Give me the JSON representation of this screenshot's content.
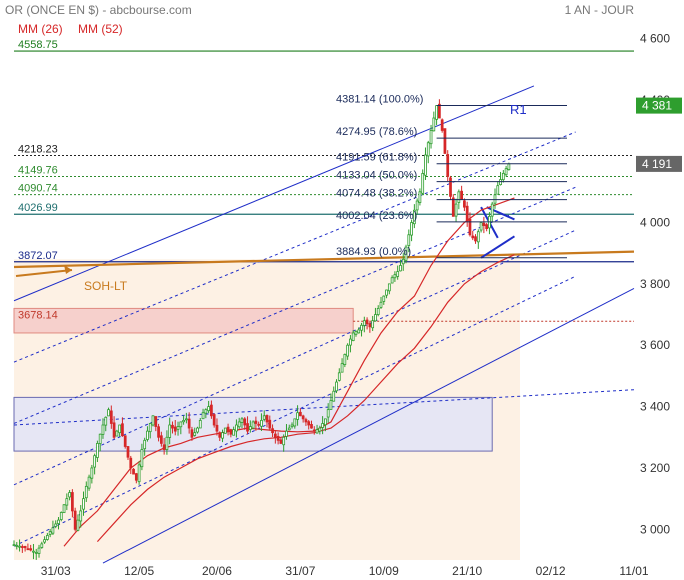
{
  "header": {
    "title": "OR (ONCE EN $) - abcbourse.com",
    "period": "1 AN - JOUR",
    "legend": [
      {
        "label": "MM (26)",
        "color": "#d62728"
      },
      {
        "label": "MM (52)",
        "color": "#d62728"
      }
    ]
  },
  "chart_data": {
    "type": "candlestick",
    "ylim": [
      2900,
      4660
    ],
    "yticks": [
      3000,
      3200,
      3400,
      3600,
      3800,
      4000,
      4200,
      4400,
      4600
    ],
    "ytick_labels": [
      "3 000",
      "3 200",
      "3 400",
      "3 600",
      "3 800",
      "4 000",
      "4 200",
      "4 400",
      "4 600"
    ],
    "xticks": [
      {
        "label": "31/03",
        "day": 15
      },
      {
        "label": "12/05",
        "day": 45
      },
      {
        "label": "20/06",
        "day": 73
      },
      {
        "label": "31/07",
        "day": 103
      },
      {
        "label": "10/09",
        "day": 133
      },
      {
        "label": "21/10",
        "day": 163
      },
      {
        "label": "02/12",
        "day": 193
      },
      {
        "label": "11/01",
        "day": 223
      }
    ],
    "days_total": 223,
    "price_badges": [
      {
        "text": "4 381",
        "value": 4381,
        "color": "#2e9e2e"
      },
      {
        "text": "4 191",
        "value": 4191,
        "color": "#666666"
      }
    ],
    "levels": [
      {
        "label": "4558.75",
        "value": 4558.75,
        "color": "#1e7d1e",
        "style": "solid"
      },
      {
        "label": "4218.23",
        "value": 4218.23,
        "color": "#222222",
        "style": "dotted"
      },
      {
        "label": "4149.76",
        "value": 4149.76,
        "color": "#2e8b2e",
        "style": "dotted"
      },
      {
        "label": "4090.74",
        "value": 4090.74,
        "color": "#2e8b2e",
        "style": "dotted"
      },
      {
        "label": "4026.99",
        "value": 4026.99,
        "color": "#1f6f6f",
        "style": "solid"
      },
      {
        "label": "3872.07",
        "value": 3872.07,
        "color": "#1a2a8a",
        "style": "solid"
      },
      {
        "label": "3678.14",
        "value": 3678.14,
        "color": "#c0392b",
        "style": "dotted"
      }
    ],
    "fibonacci": [
      {
        "label": "4381.14 (100.0%)",
        "value": 4381.14
      },
      {
        "label": "4274.95 (78.6%)",
        "value": 4274.95
      },
      {
        "label": "4191.59 (61.8%)",
        "value": 4191.59
      },
      {
        "label": "4133.04 (50.0%)",
        "value": 4133.04
      },
      {
        "label": "4074.48 (38.2%)",
        "value": 4074.48
      },
      {
        "label": "4002.04 (23.6%)",
        "value": 4002.04
      },
      {
        "label": "3884.93 (0.0%)",
        "value": 3884.93
      }
    ],
    "annotations": {
      "r1": "R1",
      "soh_lt": "SOH-LT"
    },
    "zones": [
      {
        "name": "resistance-zone",
        "day_start": 0,
        "day_end": 122,
        "low": 3640,
        "high": 3720,
        "color": "#f6d0cc",
        "border": "#e08a80"
      },
      {
        "name": "consolidation-zone",
        "day_start": 0,
        "day_end": 172,
        "low": 3255,
        "high": 3430,
        "color": "#e6e6f4",
        "border": "#6a6ab0"
      },
      {
        "name": "channel-background",
        "day_start": 0,
        "day_end": 182,
        "low": 2900,
        "high": 3880,
        "color": "#fdf1e4",
        "border": ""
      }
    ],
    "trend_lines": [
      {
        "name": "channel-top",
        "p1": [
          0,
          3745
        ],
        "p2": [
          187,
          4445
        ],
        "color": "#1f2ec8",
        "dash": ""
      },
      {
        "name": "channel-bottom",
        "p1": [
          32,
          2890
        ],
        "p2": [
          223,
          3785
        ],
        "color": "#1f2ec8",
        "dash": ""
      },
      {
        "name": "channel-mid-1",
        "p1": [
          0,
          3545
        ],
        "p2": [
          202,
          4295
        ],
        "color": "#1f2ec8",
        "dash": "3,3"
      },
      {
        "name": "channel-mid-2",
        "p1": [
          0,
          3345
        ],
        "p2": [
          202,
          4115
        ],
        "color": "#1f2ec8",
        "dash": "3,3"
      },
      {
        "name": "channel-mid-3",
        "p1": [
          0,
          3145
        ],
        "p2": [
          202,
          3975
        ],
        "color": "#1f2ec8",
        "dash": "3,3"
      },
      {
        "name": "channel-mid-4",
        "p1": [
          0,
          2945
        ],
        "p2": [
          202,
          3825
        ],
        "color": "#1f2ec8",
        "dash": "3,3"
      },
      {
        "name": "support-dotted",
        "p1": [
          0,
          3340
        ],
        "p2": [
          223,
          3455
        ],
        "color": "#1f2ec8",
        "dash": "3,3"
      },
      {
        "name": "soh-lt-line",
        "p1": [
          0,
          3855
        ],
        "p2": [
          223,
          3905
        ],
        "color": "#c87a1e",
        "dash": ""
      },
      {
        "name": "triangle-upper",
        "p1": [
          170,
          4050
        ],
        "p2": [
          180,
          4010
        ],
        "color": "#1f2ec8",
        "dash": ""
      },
      {
        "name": "triangle-lower",
        "p1": [
          168,
          3885
        ],
        "p2": [
          180,
          3955
        ],
        "color": "#1f2ec8",
        "dash": ""
      },
      {
        "name": "triangle-left",
        "p1": [
          168,
          4050
        ],
        "p2": [
          174,
          3950
        ],
        "color": "#1f2ec8",
        "dash": ""
      }
    ],
    "ma26": [
      [
        18,
        2945
      ],
      [
        24,
        3010
      ],
      [
        30,
        3060
      ],
      [
        36,
        3130
      ],
      [
        42,
        3200
      ],
      [
        48,
        3240
      ],
      [
        54,
        3265
      ],
      [
        60,
        3280
      ],
      [
        66,
        3300
      ],
      [
        72,
        3310
      ],
      [
        78,
        3320
      ],
      [
        84,
        3330
      ],
      [
        90,
        3325
      ],
      [
        96,
        3320
      ],
      [
        102,
        3318
      ],
      [
        108,
        3320
      ],
      [
        114,
        3350
      ],
      [
        120,
        3450
      ],
      [
        126,
        3550
      ],
      [
        132,
        3640
      ],
      [
        138,
        3710
      ],
      [
        144,
        3760
      ],
      [
        150,
        3860
      ],
      [
        156,
        3940
      ],
      [
        162,
        4000
      ],
      [
        168,
        4040
      ],
      [
        174,
        4060
      ],
      [
        180,
        4080
      ]
    ],
    "ma52": [
      [
        30,
        2960
      ],
      [
        36,
        3020
      ],
      [
        42,
        3080
      ],
      [
        48,
        3130
      ],
      [
        54,
        3170
      ],
      [
        60,
        3200
      ],
      [
        66,
        3230
      ],
      [
        72,
        3250
      ],
      [
        78,
        3270
      ],
      [
        84,
        3285
      ],
      [
        90,
        3295
      ],
      [
        96,
        3300
      ],
      [
        102,
        3310
      ],
      [
        108,
        3315
      ],
      [
        114,
        3330
      ],
      [
        120,
        3370
      ],
      [
        126,
        3420
      ],
      [
        132,
        3480
      ],
      [
        138,
        3540
      ],
      [
        144,
        3590
      ],
      [
        150,
        3660
      ],
      [
        156,
        3740
      ],
      [
        162,
        3800
      ],
      [
        168,
        3840
      ],
      [
        174,
        3870
      ],
      [
        180,
        3895
      ]
    ],
    "price_path": [
      [
        0,
        2950
      ],
      [
        4,
        2940
      ],
      [
        8,
        2925
      ],
      [
        12,
        2980
      ],
      [
        16,
        3030
      ],
      [
        18,
        3080
      ],
      [
        20,
        3120
      ],
      [
        22,
        3000
      ],
      [
        24,
        3060
      ],
      [
        26,
        3140
      ],
      [
        28,
        3200
      ],
      [
        30,
        3280
      ],
      [
        32,
        3340
      ],
      [
        34,
        3390
      ],
      [
        36,
        3300
      ],
      [
        38,
        3340
      ],
      [
        40,
        3270
      ],
      [
        42,
        3200
      ],
      [
        44,
        3160
      ],
      [
        46,
        3260
      ],
      [
        48,
        3320
      ],
      [
        50,
        3370
      ],
      [
        52,
        3300
      ],
      [
        54,
        3260
      ],
      [
        56,
        3340
      ],
      [
        58,
        3320
      ],
      [
        60,
        3350
      ],
      [
        62,
        3360
      ],
      [
        64,
        3300
      ],
      [
        66,
        3330
      ],
      [
        68,
        3380
      ],
      [
        70,
        3400
      ],
      [
        72,
        3340
      ],
      [
        74,
        3300
      ],
      [
        76,
        3330
      ],
      [
        78,
        3310
      ],
      [
        80,
        3340
      ],
      [
        82,
        3360
      ],
      [
        84,
        3320
      ],
      [
        86,
        3350
      ],
      [
        88,
        3340
      ],
      [
        90,
        3370
      ],
      [
        92,
        3330
      ],
      [
        94,
        3300
      ],
      [
        96,
        3280
      ],
      [
        98,
        3320
      ],
      [
        100,
        3340
      ],
      [
        102,
        3380
      ],
      [
        104,
        3360
      ],
      [
        106,
        3340
      ],
      [
        108,
        3320
      ],
      [
        110,
        3330
      ],
      [
        112,
        3360
      ],
      [
        114,
        3420
      ],
      [
        116,
        3480
      ],
      [
        118,
        3540
      ],
      [
        120,
        3600
      ],
      [
        122,
        3640
      ],
      [
        124,
        3650
      ],
      [
        126,
        3680
      ],
      [
        128,
        3660
      ],
      [
        130,
        3700
      ],
      [
        132,
        3740
      ],
      [
        134,
        3780
      ],
      [
        136,
        3820
      ],
      [
        138,
        3840
      ],
      [
        140,
        3880
      ],
      [
        142,
        3960
      ],
      [
        144,
        4040
      ],
      [
        146,
        4100
      ],
      [
        148,
        4220
      ],
      [
        150,
        4300
      ],
      [
        152,
        4381
      ],
      [
        154,
        4300
      ],
      [
        156,
        4150
      ],
      [
        158,
        4020
      ],
      [
        160,
        4100
      ],
      [
        162,
        4050
      ],
      [
        164,
        3960
      ],
      [
        166,
        3940
      ],
      [
        168,
        4000
      ],
      [
        170,
        3980
      ],
      [
        172,
        4060
      ],
      [
        174,
        4120
      ],
      [
        176,
        4160
      ],
      [
        178,
        4191
      ]
    ]
  }
}
